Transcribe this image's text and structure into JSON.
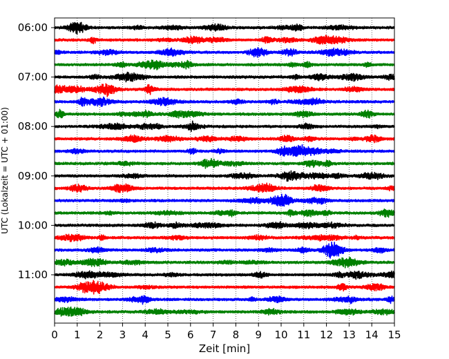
{
  "chart_data": {
    "type": "line",
    "title": "",
    "xlabel": "Zeit  [min]",
    "ylabel": "UTC (Lokalzeit = UTC + 01:00)",
    "xlim": [
      0,
      15
    ],
    "x_ticks": [
      0,
      1,
      2,
      3,
      4,
      5,
      6,
      7,
      8,
      9,
      10,
      11,
      12,
      13,
      14,
      15
    ],
    "x_tick_labels": [
      "0",
      "1",
      "2",
      "3",
      "4",
      "5",
      "6",
      "7",
      "8",
      "9",
      "10",
      "11",
      "12",
      "13",
      "14",
      "15"
    ],
    "y_ticks": [
      {
        "label": "06:00",
        "row": 0
      },
      {
        "label": "07:00",
        "row": 4
      },
      {
        "label": "08:00",
        "row": 8
      },
      {
        "label": "09:00",
        "row": 12
      },
      {
        "label": "10:00",
        "row": 16
      },
      {
        "label": "11:00",
        "row": 20
      }
    ],
    "grid": {
      "vertical": true,
      "style": "dotted"
    },
    "row_minutes": 15,
    "row_count": 24,
    "row_colors": [
      "#000000",
      "#ff0000",
      "#0000ff",
      "#008000"
    ],
    "rows": [
      {
        "start": "06:00",
        "color": "#000000"
      },
      {
        "start": "06:15",
        "color": "#ff0000"
      },
      {
        "start": "06:30",
        "color": "#0000ff"
      },
      {
        "start": "06:45",
        "color": "#008000"
      },
      {
        "start": "07:00",
        "color": "#000000"
      },
      {
        "start": "07:15",
        "color": "#ff0000"
      },
      {
        "start": "07:30",
        "color": "#0000ff"
      },
      {
        "start": "07:45",
        "color": "#008000"
      },
      {
        "start": "08:00",
        "color": "#000000"
      },
      {
        "start": "08:15",
        "color": "#ff0000"
      },
      {
        "start": "08:30",
        "color": "#0000ff"
      },
      {
        "start": "08:45",
        "color": "#008000"
      },
      {
        "start": "09:00",
        "color": "#000000"
      },
      {
        "start": "09:15",
        "color": "#ff0000"
      },
      {
        "start": "09:30",
        "color": "#0000ff"
      },
      {
        "start": "09:45",
        "color": "#008000"
      },
      {
        "start": "10:00",
        "color": "#000000"
      },
      {
        "start": "10:15",
        "color": "#ff0000"
      },
      {
        "start": "10:30",
        "color": "#0000ff"
      },
      {
        "start": "10:45",
        "color": "#008000"
      },
      {
        "start": "11:00",
        "color": "#000000"
      },
      {
        "start": "11:15",
        "color": "#ff0000"
      },
      {
        "start": "11:30",
        "color": "#0000ff"
      },
      {
        "start": "11:45",
        "color": "#008000"
      }
    ]
  }
}
